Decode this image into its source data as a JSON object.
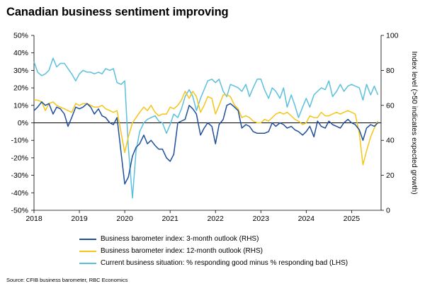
{
  "chart_data": {
    "type": "line",
    "title": "Canadian business sentiment improving",
    "y_left": {
      "label": "",
      "ylim": [
        -50,
        50
      ],
      "ticks": [
        "50%",
        "40%",
        "30%",
        "20%",
        "10%",
        "0%",
        "-10%",
        "-20%",
        "-30%",
        "-40%",
        "-50%"
      ]
    },
    "y_right": {
      "label": "Index level (>50 indicates expected growth)",
      "ylim": [
        0,
        100
      ],
      "ticks": [
        "100",
        "80",
        "60",
        "40",
        "20",
        "0"
      ]
    },
    "x_ticks": [
      "2018",
      "2019",
      "2020",
      "2021",
      "2022",
      "2023",
      "2024",
      "2025"
    ],
    "xlim": [
      2018.0,
      2025.65
    ],
    "zero_line": 0,
    "series": [
      {
        "name": "Business barometer index: 3-month outlook (RHS)",
        "color": "#1f4e9a",
        "axis": "right",
        "x": [
          2018.0,
          2018.08,
          2018.17,
          2018.25,
          2018.33,
          2018.42,
          2018.5,
          2018.58,
          2018.67,
          2018.75,
          2018.83,
          2018.92,
          2019.0,
          2019.08,
          2019.17,
          2019.25,
          2019.33,
          2019.42,
          2019.5,
          2019.58,
          2019.67,
          2019.75,
          2019.83,
          2019.92,
          2020.0,
          2020.08,
          2020.17,
          2020.25,
          2020.33,
          2020.42,
          2020.5,
          2020.58,
          2020.67,
          2020.75,
          2020.83,
          2020.92,
          2021.0,
          2021.08,
          2021.17,
          2021.25,
          2021.33,
          2021.42,
          2021.5,
          2021.58,
          2021.67,
          2021.75,
          2021.83,
          2021.92,
          2022.0,
          2022.08,
          2022.17,
          2022.25,
          2022.33,
          2022.42,
          2022.5,
          2022.58,
          2022.67,
          2022.75,
          2022.83,
          2022.92,
          2023.0,
          2023.08,
          2023.17,
          2023.25,
          2023.33,
          2023.42,
          2023.5,
          2023.58,
          2023.67,
          2023.75,
          2023.83,
          2023.92,
          2024.0,
          2024.08,
          2024.17,
          2024.25,
          2024.33,
          2024.42,
          2024.5,
          2024.58,
          2024.67,
          2024.75,
          2024.83,
          2024.92,
          2025.0,
          2025.08,
          2025.17,
          2025.25,
          2025.33,
          2025.42,
          2025.5,
          2025.58
        ],
        "values": [
          57,
          59,
          62,
          60,
          61,
          55,
          59,
          58,
          55,
          48,
          53,
          59,
          58,
          59,
          61,
          59,
          55,
          58,
          54,
          53,
          50,
          49,
          53,
          -1,
          15,
          19,
          31,
          36,
          38,
          43,
          38,
          40,
          37,
          35,
          35,
          30,
          28,
          32,
          50,
          51,
          52,
          60,
          58,
          55,
          43,
          47,
          50,
          48,
          38,
          49,
          52,
          60,
          61,
          59,
          57,
          47,
          49,
          48,
          45,
          44,
          44,
          44,
          45,
          50,
          48,
          50,
          49,
          47,
          48,
          46,
          45,
          43,
          45,
          48,
          42,
          51,
          48,
          47,
          51,
          49,
          48,
          47,
          50,
          52,
          50,
          49,
          46,
          40,
          47,
          49,
          48,
          50
        ]
      },
      {
        "name": "Business barometer index: 12-month outlook (RHS)",
        "color": "#f5c518",
        "axis": "right",
        "x": [
          2018.0,
          2018.08,
          2018.17,
          2018.25,
          2018.33,
          2018.42,
          2018.5,
          2018.58,
          2018.67,
          2018.75,
          2018.83,
          2018.92,
          2019.0,
          2019.08,
          2019.17,
          2019.25,
          2019.33,
          2019.42,
          2019.5,
          2019.58,
          2019.67,
          2019.75,
          2019.83,
          2019.92,
          2020.0,
          2020.08,
          2020.17,
          2020.25,
          2020.33,
          2020.42,
          2020.5,
          2020.58,
          2020.67,
          2020.75,
          2020.83,
          2020.92,
          2021.0,
          2021.08,
          2021.17,
          2021.25,
          2021.33,
          2021.42,
          2021.5,
          2021.58,
          2021.67,
          2021.75,
          2021.83,
          2021.92,
          2022.0,
          2022.08,
          2022.17,
          2022.25,
          2022.33,
          2022.42,
          2022.5,
          2022.58,
          2022.67,
          2022.75,
          2022.83,
          2022.92,
          2023.0,
          2023.08,
          2023.17,
          2023.25,
          2023.33,
          2023.42,
          2023.5,
          2023.58,
          2023.67,
          2023.75,
          2023.83,
          2023.92,
          2024.0,
          2024.08,
          2024.17,
          2024.25,
          2024.33,
          2024.42,
          2024.5,
          2024.58,
          2024.67,
          2024.75,
          2024.83,
          2024.92,
          2025.0,
          2025.08,
          2025.17,
          2025.25,
          2025.33,
          2025.42,
          2025.5,
          2025.58
        ],
        "values": [
          63,
          63,
          62,
          57,
          61,
          62,
          60,
          59,
          58,
          57,
          56,
          61,
          60,
          61,
          61,
          60,
          59,
          59,
          60,
          58,
          57,
          56,
          57,
          -1,
          33,
          42,
          50,
          53,
          56,
          59,
          57,
          60,
          56,
          54,
          55,
          55,
          59,
          58,
          60,
          63,
          68,
          64,
          68,
          65,
          56,
          60,
          65,
          64,
          55,
          60,
          66,
          66,
          65,
          60,
          58,
          53,
          54,
          53,
          51,
          50,
          50,
          52,
          51,
          53,
          55,
          56,
          55,
          56,
          54,
          52,
          51,
          49,
          50,
          54,
          53,
          53,
          56,
          54,
          54,
          55,
          56,
          55,
          56,
          57,
          56,
          55,
          44,
          26,
          34,
          42,
          47,
          51
        ]
      },
      {
        "name": "Current business situation: % responding good minus % responding bad (LHS)",
        "color": "#5bc0de",
        "axis": "left",
        "x": [
          2018.0,
          2018.08,
          2018.17,
          2018.25,
          2018.33,
          2018.42,
          2018.5,
          2018.58,
          2018.67,
          2018.75,
          2018.83,
          2018.92,
          2019.0,
          2019.08,
          2019.17,
          2019.25,
          2019.33,
          2019.42,
          2019.5,
          2019.58,
          2019.67,
          2019.75,
          2019.83,
          2019.92,
          2020.0,
          2020.08,
          2020.17,
          2020.25,
          2020.33,
          2020.42,
          2020.5,
          2020.58,
          2020.67,
          2020.75,
          2020.83,
          2020.92,
          2021.0,
          2021.08,
          2021.17,
          2021.25,
          2021.33,
          2021.42,
          2021.5,
          2021.58,
          2021.67,
          2021.75,
          2021.83,
          2021.92,
          2022.0,
          2022.08,
          2022.17,
          2022.25,
          2022.33,
          2022.42,
          2022.5,
          2022.58,
          2022.67,
          2022.75,
          2022.83,
          2022.92,
          2023.0,
          2023.08,
          2023.17,
          2023.25,
          2023.33,
          2023.42,
          2023.5,
          2023.58,
          2023.67,
          2023.75,
          2023.83,
          2023.92,
          2024.0,
          2024.08,
          2024.17,
          2024.25,
          2024.33,
          2024.42,
          2024.5,
          2024.58,
          2024.67,
          2024.75,
          2024.83,
          2024.92,
          2025.0,
          2025.08,
          2025.17,
          2025.25,
          2025.33,
          2025.42,
          2025.5,
          2025.58
        ],
        "values": [
          35,
          29,
          27,
          28,
          30,
          37,
          32,
          34,
          34,
          31,
          28,
          24,
          28,
          30,
          29,
          29,
          28,
          29,
          28,
          31,
          30,
          31,
          23,
          22,
          24,
          -14,
          -43,
          -16,
          -5,
          0,
          2,
          3,
          4,
          1,
          0,
          -6,
          -1,
          5,
          3,
          8,
          15,
          19,
          15,
          7,
          14,
          19,
          24,
          25,
          23,
          25,
          18,
          15,
          22,
          21,
          20,
          18,
          22,
          15,
          20,
          25,
          25,
          19,
          14,
          20,
          18,
          14,
          20,
          9,
          16,
          10,
          3,
          9,
          14,
          9,
          16,
          18,
          20,
          19,
          24,
          15,
          18,
          22,
          18,
          21,
          22,
          21,
          20,
          13,
          22,
          16,
          21,
          16
        ]
      }
    ],
    "legend": [
      "Business barometer index: 3-month outlook (RHS)",
      "Business barometer index: 12-month outlook (RHS)",
      "Current business situation: % responding good minus % responding bad (LHS)"
    ],
    "source": "Source: CFIB business barometer, RBC Economics"
  }
}
